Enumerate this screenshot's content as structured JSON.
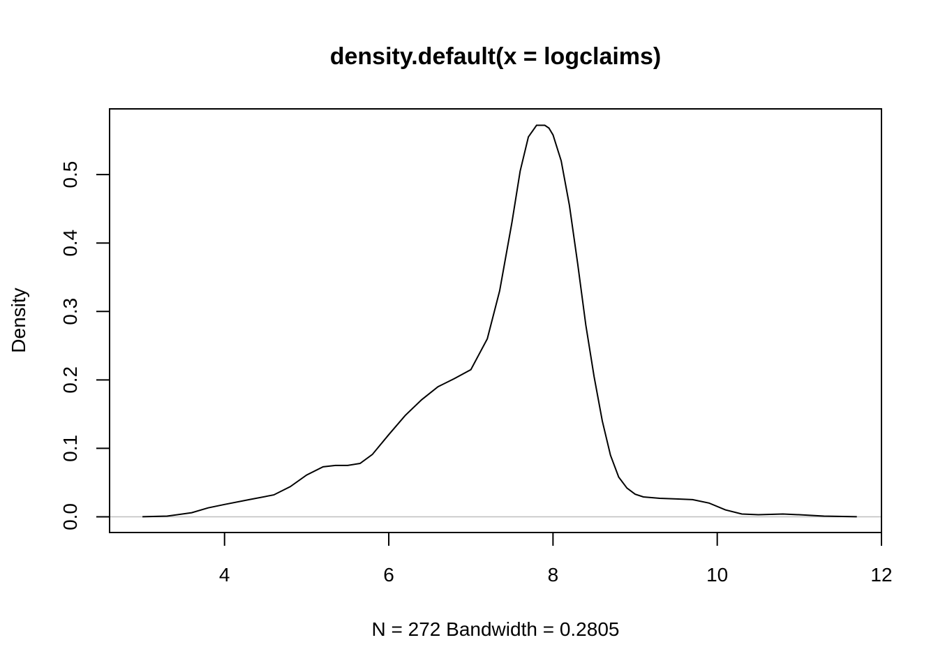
{
  "chart_data": {
    "type": "line",
    "title": "density.default(x = logclaims)",
    "xlabel": "N = 272   Bandwidth = 0.2805",
    "ylabel": "Density",
    "xlim": [
      2.6,
      12.0
    ],
    "ylim": [
      -0.023,
      0.596
    ],
    "x_ticks": [
      "4",
      "6",
      "8",
      "10",
      "12"
    ],
    "y_ticks": [
      "0.0",
      "0.1",
      "0.2",
      "0.3",
      "0.4",
      "0.5"
    ],
    "x_tick_values": [
      4,
      6,
      8,
      10,
      12
    ],
    "y_tick_values": [
      0.0,
      0.1,
      0.2,
      0.3,
      0.4,
      0.5
    ],
    "baseline": 0.0,
    "grid": false,
    "series": [
      {
        "x": [
          3.0,
          3.3,
          3.6,
          3.8,
          4.0,
          4.3,
          4.6,
          4.8,
          5.0,
          5.2,
          5.35,
          5.5,
          5.65,
          5.8,
          6.0,
          6.2,
          6.4,
          6.6,
          6.8,
          7.0,
          7.2,
          7.35,
          7.5,
          7.6,
          7.7,
          7.8,
          7.9,
          7.95,
          8.0,
          8.1,
          8.2,
          8.3,
          8.4,
          8.5,
          8.6,
          8.7,
          8.8,
          8.9,
          9.0,
          9.1,
          9.3,
          9.5,
          9.7,
          9.9,
          10.1,
          10.3,
          10.5,
          10.8,
          11.0,
          11.3,
          11.7
        ],
        "y": [
          0.0,
          0.001,
          0.006,
          0.013,
          0.018,
          0.025,
          0.032,
          0.044,
          0.061,
          0.073,
          0.075,
          0.075,
          0.078,
          0.091,
          0.12,
          0.148,
          0.171,
          0.19,
          0.202,
          0.215,
          0.26,
          0.33,
          0.43,
          0.505,
          0.555,
          0.572,
          0.572,
          0.568,
          0.558,
          0.52,
          0.455,
          0.37,
          0.28,
          0.205,
          0.14,
          0.09,
          0.058,
          0.042,
          0.033,
          0.029,
          0.027,
          0.026,
          0.025,
          0.02,
          0.01,
          0.004,
          0.003,
          0.004,
          0.003,
          0.001,
          0.0
        ]
      }
    ]
  }
}
